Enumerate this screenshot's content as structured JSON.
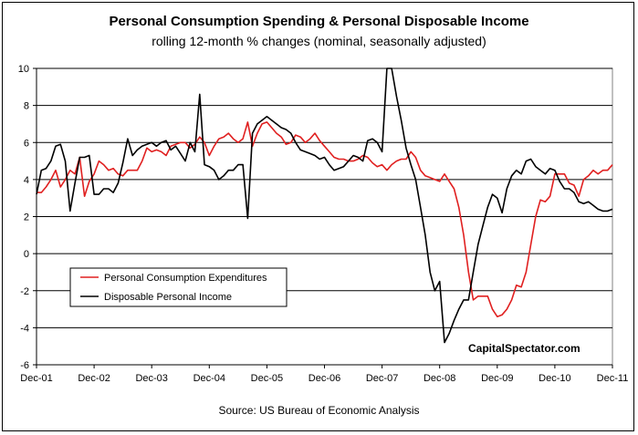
{
  "chart_data": {
    "type": "line",
    "title": "Personal Consumption Spending & Personal Disposable Income",
    "subtitle": "rolling 12-month % changes (nominal, seasonally adjusted)",
    "source": "Source: US Bureau of Economic Analysis",
    "watermark": "CapitalSpectator.com",
    "x_tick_labels": [
      "Dec-01",
      "Dec-02",
      "Dec-03",
      "Dec-04",
      "Dec-05",
      "Dec-06",
      "Dec-07",
      "Dec-08",
      "Dec-09",
      "Dec-10",
      "Dec-11"
    ],
    "y_ticks": [
      -6,
      -4,
      -2,
      0,
      2,
      4,
      6,
      8,
      10
    ],
    "ylim": [
      -6,
      10
    ],
    "xlim": [
      0,
      120
    ],
    "grid": "horizontal",
    "legend_position": "lower-left",
    "series": [
      {
        "name": "Personal Consumption Expenditures",
        "color": "#e02020",
        "x": [
          0,
          1,
          2,
          3,
          4,
          5,
          6,
          7,
          8,
          9,
          10,
          11,
          12,
          13,
          14,
          15,
          16,
          17,
          18,
          19,
          20,
          21,
          22,
          23,
          24,
          25,
          26,
          27,
          28,
          29,
          30,
          31,
          32,
          33,
          34,
          35,
          36,
          37,
          38,
          39,
          40,
          41,
          42,
          43,
          44,
          45,
          46,
          47,
          48,
          49,
          50,
          51,
          52,
          53,
          54,
          55,
          56,
          57,
          58,
          59,
          60,
          61,
          62,
          63,
          64,
          65,
          66,
          67,
          68,
          69,
          70,
          71,
          72,
          73,
          74,
          75,
          76,
          77,
          78,
          79,
          80,
          81,
          82,
          83,
          84,
          85,
          86,
          87,
          88,
          89,
          90,
          91,
          92,
          93,
          94,
          95,
          96,
          97,
          98,
          99,
          100,
          101,
          102,
          103,
          104,
          105,
          106,
          107,
          108,
          109,
          110,
          111,
          112,
          113,
          114,
          115,
          116,
          117,
          118,
          119,
          120
        ],
        "values": [
          3.3,
          3.3,
          3.6,
          4.0,
          4.5,
          3.6,
          4.0,
          4.5,
          4.3,
          5.2,
          3.1,
          3.9,
          4.3,
          5.0,
          4.8,
          4.5,
          4.6,
          4.3,
          4.2,
          4.5,
          4.5,
          4.5,
          5.0,
          5.7,
          5.5,
          5.6,
          5.5,
          5.3,
          5.8,
          5.9,
          6.0,
          6.0,
          5.7,
          5.9,
          6.3,
          6.0,
          5.3,
          5.8,
          6.2,
          6.3,
          6.5,
          6.2,
          6.0,
          6.2,
          7.1,
          5.8,
          6.5,
          7.0,
          7.1,
          6.8,
          6.5,
          6.3,
          5.9,
          6.0,
          6.4,
          6.3,
          6.0,
          6.2,
          6.5,
          6.1,
          5.8,
          5.5,
          5.2,
          5.1,
          5.1,
          5.0,
          5.0,
          5.1,
          5.3,
          5.2,
          4.9,
          4.7,
          4.8,
          4.5,
          4.8,
          5.0,
          5.1,
          5.1,
          5.5,
          5.2,
          4.5,
          4.2,
          4.1,
          4.0,
          3.9,
          4.3,
          3.9,
          3.5,
          2.5,
          1.0,
          -1.0,
          -2.5,
          -2.3,
          -2.3,
          -2.3,
          -3.0,
          -3.4,
          -3.3,
          -3.0,
          -2.5,
          -1.7,
          -1.8,
          -1.0,
          0.5,
          2.0,
          2.9,
          2.8,
          3.1,
          4.3,
          4.3,
          4.3,
          3.8,
          3.7,
          3.1,
          4.0,
          4.2,
          4.5,
          4.3,
          4.5,
          4.5,
          4.8
        ]
      },
      {
        "name": "Disposable Personal Income",
        "color": "#000000",
        "x": [
          0,
          1,
          2,
          3,
          4,
          5,
          6,
          7,
          8,
          9,
          10,
          11,
          12,
          13,
          14,
          15,
          16,
          17,
          18,
          19,
          20,
          21,
          22,
          23,
          24,
          25,
          26,
          27,
          28,
          29,
          30,
          31,
          32,
          33,
          34,
          35,
          36,
          37,
          38,
          39,
          40,
          41,
          42,
          43,
          44,
          45,
          46,
          47,
          48,
          49,
          50,
          51,
          52,
          53,
          54,
          55,
          56,
          57,
          58,
          59,
          60,
          61,
          62,
          63,
          64,
          65,
          66,
          67,
          68,
          69,
          70,
          71,
          72,
          73,
          74,
          75,
          76,
          77,
          78,
          79,
          80,
          81,
          82,
          83,
          84,
          85,
          86,
          87,
          88,
          89,
          90,
          91,
          92,
          93,
          94,
          95,
          96,
          97,
          98,
          99,
          100,
          101,
          102,
          103,
          104,
          105,
          106,
          107,
          108,
          109,
          110,
          111,
          112,
          113,
          114,
          115,
          116,
          117,
          118,
          119,
          120
        ],
        "values": [
          3.2,
          4.5,
          4.6,
          5.0,
          5.8,
          5.9,
          5.0,
          2.3,
          3.8,
          5.2,
          5.2,
          5.3,
          3.2,
          3.2,
          3.5,
          3.5,
          3.3,
          3.8,
          4.9,
          6.2,
          5.3,
          5.6,
          5.8,
          5.9,
          6.0,
          5.8,
          6.0,
          6.1,
          5.6,
          5.8,
          5.4,
          5.0,
          6.0,
          5.5,
          8.6,
          4.8,
          4.7,
          4.5,
          4.0,
          4.2,
          4.5,
          4.5,
          4.8,
          4.8,
          1.9,
          6.5,
          7.0,
          7.2,
          7.4,
          7.2,
          7.0,
          6.8,
          6.7,
          6.5,
          6.0,
          5.6,
          5.5,
          5.4,
          5.3,
          5.1,
          5.2,
          4.8,
          4.5,
          4.6,
          4.7,
          5.0,
          5.3,
          5.2,
          5.0,
          6.1,
          6.2,
          6.0,
          5.5,
          10.0,
          10.0,
          8.5,
          7.2,
          5.7,
          4.8,
          4.0,
          2.5,
          1.0,
          -1.0,
          -2.0,
          -1.5,
          -4.8,
          -4.3,
          -3.6,
          -3.0,
          -2.5,
          -2.5,
          -1.0,
          0.5,
          1.5,
          2.5,
          3.2,
          3.0,
          2.2,
          3.5,
          4.2,
          4.5,
          4.3,
          5.0,
          5.1,
          4.7,
          4.5,
          4.3,
          4.6,
          4.5,
          3.9,
          3.5,
          3.5,
          3.3,
          2.8,
          2.7,
          2.8,
          2.6,
          2.4,
          2.3,
          2.3,
          2.4
        ]
      }
    ]
  }
}
